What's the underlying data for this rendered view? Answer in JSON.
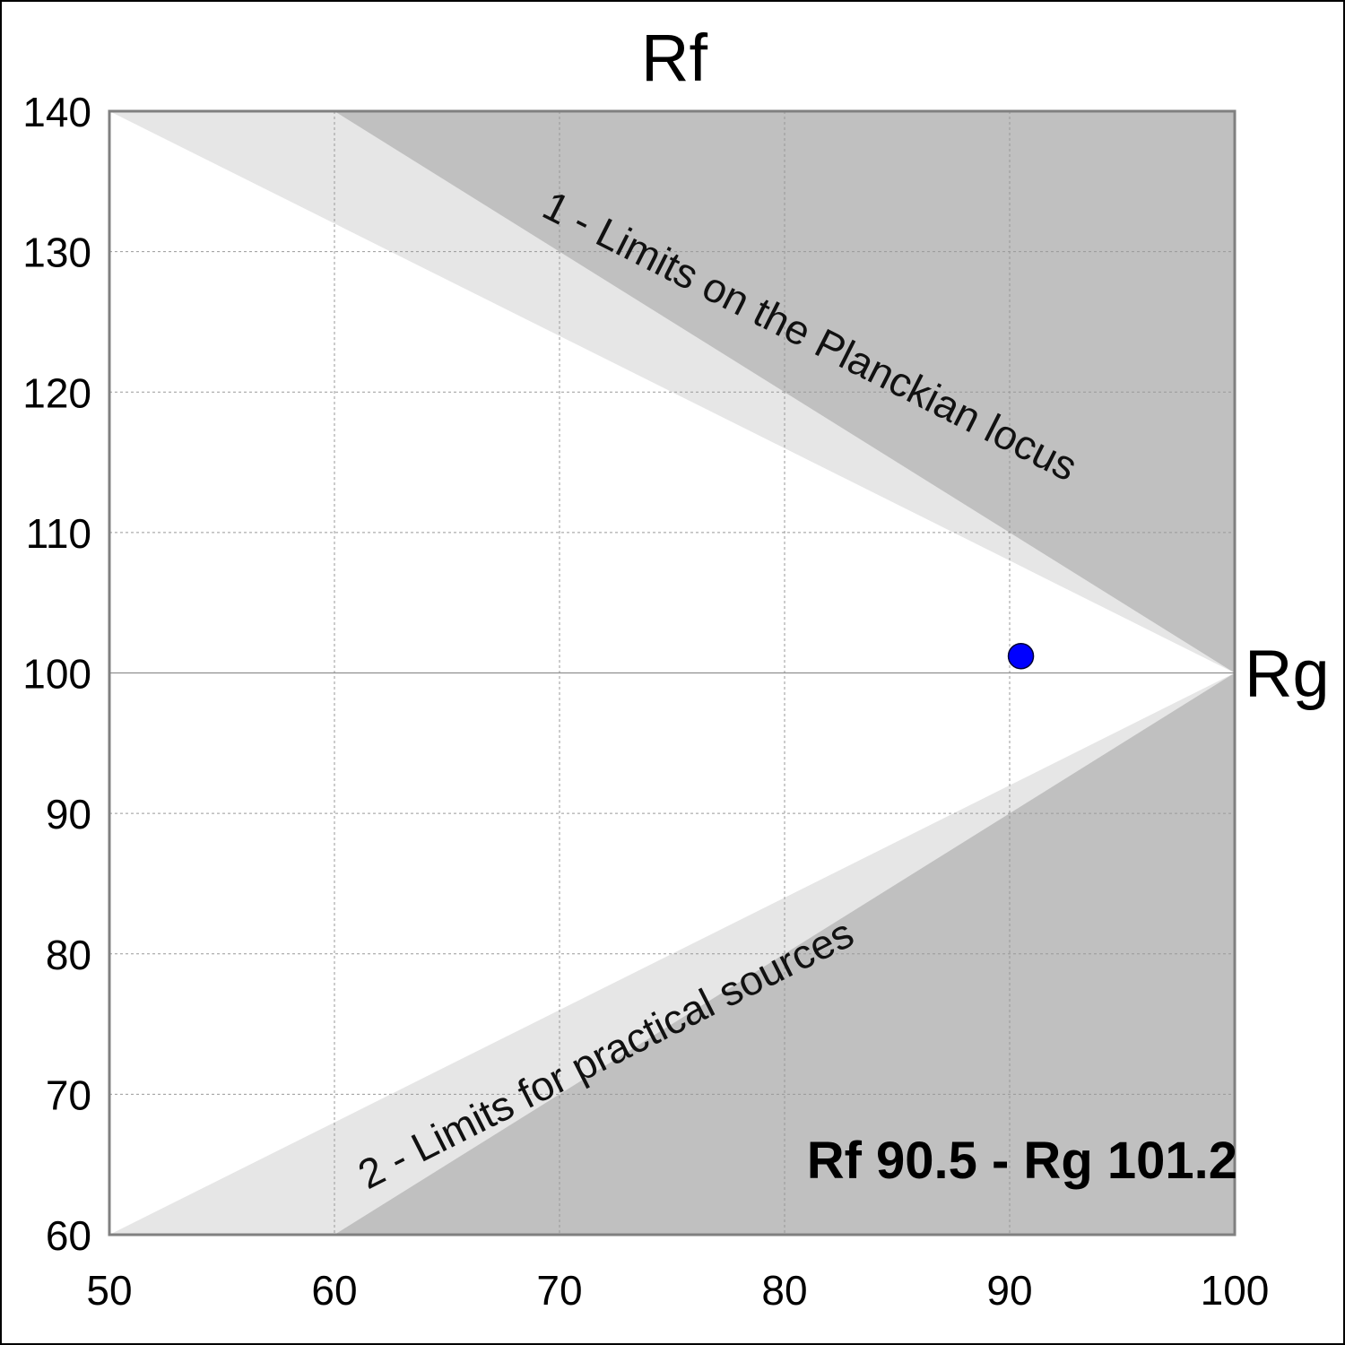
{
  "chart_data": {
    "type": "scatter",
    "title": "",
    "xlabel": "Rf",
    "ylabel": "Rg",
    "xlim": [
      50,
      100
    ],
    "ylim": [
      60,
      140
    ],
    "x_ticks": [
      50,
      60,
      70,
      80,
      90,
      100
    ],
    "y_ticks": [
      60,
      70,
      80,
      90,
      100,
      110,
      120,
      130,
      140
    ],
    "grid": true,
    "point": {
      "x": 90.5,
      "y": 101.2
    },
    "result_label": "Rf 90.5 - Rg 101.2",
    "regions": [
      {
        "label": "1 - Limits on the Planckian locus",
        "apex": [
          100,
          100
        ],
        "light_edge": [
          50,
          140
        ],
        "dark_edge": [
          60,
          140
        ]
      },
      {
        "label": "2 - Limits for practical sources",
        "apex": [
          100,
          100
        ],
        "light_edge": [
          50,
          60
        ],
        "dark_edge": [
          60,
          60
        ]
      }
    ],
    "colors": {
      "point": "#0000ff",
      "region_light": "#e6e6e6",
      "region_dark": "#c0c0c0",
      "grid": "#999999",
      "axis_frame": "#808080"
    }
  }
}
